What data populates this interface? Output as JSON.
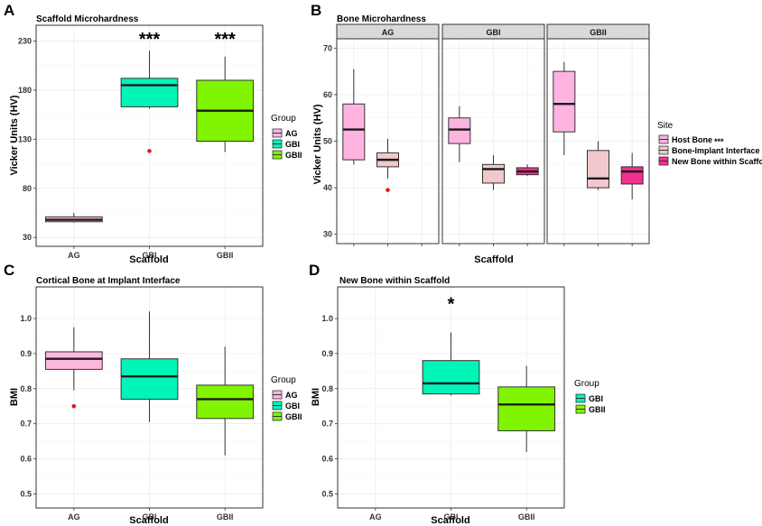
{
  "colors": {
    "AG": "#FFB6E1",
    "GBI": "#00F5B8",
    "GBII": "#80F400",
    "host": "#FFB3E0",
    "interface": "#F2C8CC",
    "newbone": "#F0308F",
    "outlier": "#E8141C",
    "strip": "#D9D9D9"
  },
  "chart_data": [
    {
      "panel": "A",
      "type": "box",
      "title": "Scaffold Microhardness",
      "xlabel": "Scaffold",
      "ylabel": "Vicker Units (HV)",
      "ylim": [
        21,
        246
      ],
      "yticks": [
        30,
        80,
        130,
        180,
        230
      ],
      "categories": [
        "AG",
        "GBI",
        "GBII"
      ],
      "boxes": [
        {
          "group": "AG",
          "min": 45,
          "q1": 46,
          "median": 48,
          "q3": 51,
          "max": 55,
          "outliers": []
        },
        {
          "group": "GBI",
          "min": 161,
          "q1": 163,
          "median": 185,
          "q3": 192,
          "max": 220,
          "outliers": [
            118
          ]
        },
        {
          "group": "GBII",
          "min": 117,
          "q1": 128,
          "median": 159,
          "q3": 190,
          "max": 214,
          "outliers": []
        }
      ],
      "annotations": [
        {
          "category": "GBI",
          "text": "***",
          "y": 233
        },
        {
          "category": "GBII",
          "text": "***",
          "y": 233
        }
      ],
      "legend": {
        "title": "Group",
        "entries": [
          "AG",
          "GBI",
          "GBII"
        ]
      }
    },
    {
      "panel": "B",
      "type": "box",
      "title": "Bone Microhardness",
      "xlabel": "Scaffold",
      "ylabel": "Vicker Units (HV)",
      "ylim": [
        28,
        72
      ],
      "yticks": [
        30,
        40,
        50,
        60,
        70
      ],
      "facets": [
        "AG",
        "GBI",
        "GBII"
      ],
      "boxes": [
        {
          "facet": "AG",
          "site": "Host Bone",
          "min": 45,
          "q1": 46,
          "median": 52.5,
          "q3": 58,
          "max": 65.5,
          "outliers": []
        },
        {
          "facet": "AG",
          "site": "Bone-Implant Interface",
          "min": 42,
          "q1": 44.5,
          "median": 46,
          "q3": 47.5,
          "max": 50.5,
          "outliers": [
            39.5
          ]
        },
        {
          "facet": "GBI",
          "site": "Host Bone",
          "min": 45.5,
          "q1": 49.5,
          "median": 52.5,
          "q3": 55,
          "max": 57.5,
          "outliers": []
        },
        {
          "facet": "GBI",
          "site": "Bone-Implant Interface",
          "min": 39.5,
          "q1": 41,
          "median": 44,
          "q3": 45,
          "max": 47,
          "outliers": []
        },
        {
          "facet": "GBI",
          "site": "New Bone within Scaffold",
          "min": 42.5,
          "q1": 42.8,
          "median": 43.5,
          "q3": 44.3,
          "max": 45,
          "outliers": []
        },
        {
          "facet": "GBII",
          "site": "Host Bone",
          "min": 47,
          "q1": 52,
          "median": 58,
          "q3": 65,
          "max": 67,
          "outliers": []
        },
        {
          "facet": "GBII",
          "site": "Bone-Implant Interface",
          "min": 39.5,
          "q1": 40,
          "median": 42,
          "q3": 48,
          "max": 50,
          "outliers": []
        },
        {
          "facet": "GBII",
          "site": "New Bone within Scaffold",
          "min": 37.5,
          "q1": 40.8,
          "median": 43.5,
          "q3": 44.5,
          "max": 47.5,
          "outliers": []
        }
      ],
      "legend": {
        "title": "Site",
        "entries": [
          "Host Bone",
          "Bone-Implant Interface",
          "New Bone within Scaffold"
        ],
        "host_sig": "***"
      }
    },
    {
      "panel": "C",
      "type": "box",
      "title": "Cortical Bone at Implant Interface",
      "xlabel": "Scaffold",
      "ylabel": "BMI",
      "ylim": [
        0.46,
        1.09
      ],
      "yticks": [
        0.5,
        0.6,
        0.7,
        0.8,
        0.9,
        1.0
      ],
      "ytick_labels": [
        "0.5",
        "0.6",
        "0.7",
        "0.8",
        "0.9",
        "1.0"
      ],
      "categories": [
        "AG",
        "GBI",
        "GBII"
      ],
      "boxes": [
        {
          "group": "AG",
          "min": 0.795,
          "q1": 0.855,
          "median": 0.885,
          "q3": 0.905,
          "max": 0.975,
          "outliers": [
            0.75
          ]
        },
        {
          "group": "GBI",
          "min": 0.705,
          "q1": 0.77,
          "median": 0.835,
          "q3": 0.885,
          "max": 1.02,
          "outliers": []
        },
        {
          "group": "GBII",
          "min": 0.61,
          "q1": 0.715,
          "median": 0.77,
          "q3": 0.81,
          "max": 0.92,
          "outliers": []
        }
      ],
      "legend": {
        "title": "Group",
        "entries": [
          "AG",
          "GBI",
          "GBII"
        ]
      }
    },
    {
      "panel": "D",
      "type": "box",
      "title": "New Bone within Scaffold",
      "xlabel": "Scaffold",
      "ylabel": "BMI",
      "ylim": [
        0.46,
        1.09
      ],
      "yticks": [
        0.5,
        0.6,
        0.7,
        0.8,
        0.9,
        1.0
      ],
      "ytick_labels": [
        "0.5",
        "0.6",
        "0.7",
        "0.8",
        "0.9",
        "1.0"
      ],
      "categories": [
        "AG",
        "GBI",
        "GBII"
      ],
      "boxes": [
        {
          "group": "GBI",
          "min": 0.78,
          "q1": 0.785,
          "median": 0.815,
          "q3": 0.88,
          "max": 0.96,
          "outliers": []
        },
        {
          "group": "GBII",
          "min": 0.62,
          "q1": 0.68,
          "median": 0.755,
          "q3": 0.805,
          "max": 0.865,
          "outliers": []
        }
      ],
      "annotations": [
        {
          "category": "GBI",
          "text": "*",
          "y": 1.045
        }
      ],
      "legend": {
        "title": "Group",
        "entries": [
          "GBI",
          "GBII"
        ]
      }
    }
  ]
}
